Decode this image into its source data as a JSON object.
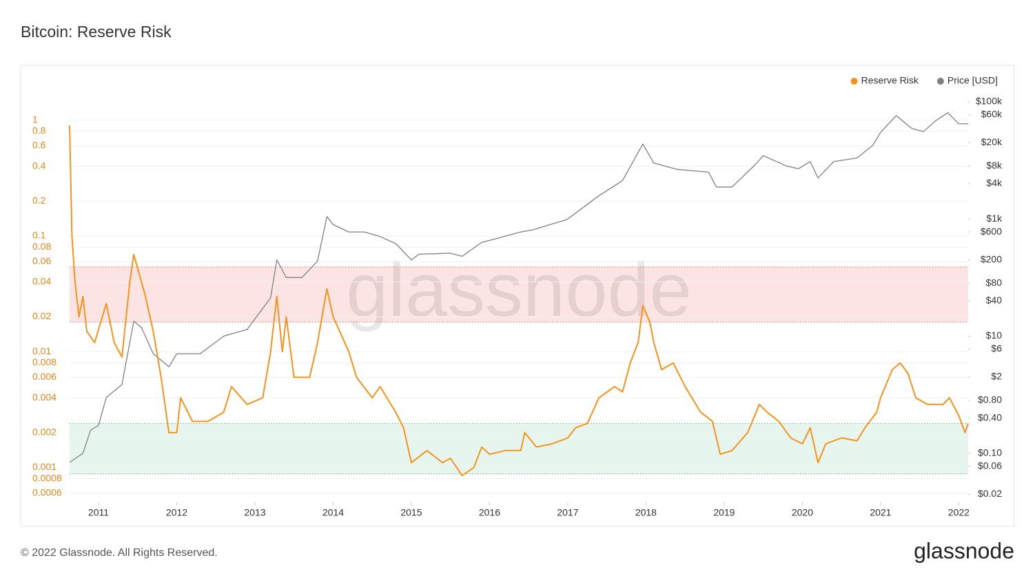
{
  "chart_data": {
    "type": "line",
    "title": "Bitcoin: Reserve Risk",
    "watermark": "glassnode",
    "footer": "© 2022 Glassnode. All Rights Reserved.",
    "brand": "glassnode",
    "log_scale": true,
    "grid": true,
    "legend": "top-right",
    "xlim": [
      2010.63,
      2022.12
    ],
    "xticks": [
      2011,
      2012,
      2013,
      2014,
      2015,
      2016,
      2017,
      2018,
      2019,
      2020,
      2021,
      2022
    ],
    "ylim": [
      0.0005,
      1.5
    ],
    "yticks": [
      1,
      0.8,
      0.6,
      0.4,
      0.2,
      0.1,
      0.08,
      0.06,
      0.04,
      0.02,
      0.01,
      0.008,
      0.006,
      0.004,
      0.002,
      0.001,
      0.0008,
      0.0006
    ],
    "y2lim": [
      0.0146,
      108000
    ],
    "y2ticks": [
      {
        "value": 100000,
        "label": "$100k"
      },
      {
        "value": 60000,
        "label": "$60k"
      },
      {
        "value": 20000,
        "label": "$20k"
      },
      {
        "value": 8000,
        "label": "$8k"
      },
      {
        "value": 4000,
        "label": "$4k"
      },
      {
        "value": 1000,
        "label": "$1k"
      },
      {
        "value": 600,
        "label": "$600"
      },
      {
        "value": 200,
        "label": "$200"
      },
      {
        "value": 80,
        "label": "$80"
      },
      {
        "value": 40,
        "label": "$40"
      },
      {
        "value": 10,
        "label": "$10"
      },
      {
        "value": 6,
        "label": "$6"
      },
      {
        "value": 2,
        "label": "$2"
      },
      {
        "value": 0.8,
        "label": "$0.80"
      },
      {
        "value": 0.4,
        "label": "$0.40"
      },
      {
        "value": 0.1,
        "label": "$0.10"
      },
      {
        "value": 0.06,
        "label": "$0.06"
      },
      {
        "value": 0.02,
        "label": "$0.02"
      }
    ],
    "zones": [
      {
        "range": [
          0.018,
          0.054
        ],
        "color": "#fde4e4"
      },
      {
        "range": [
          0.00088,
          0.0024
        ],
        "color": "#e6f6ee"
      }
    ],
    "series": [
      {
        "name": "Reserve Risk",
        "color": "#f7931a",
        "axis": "y",
        "x": [
          2010.63,
          2010.66,
          2010.7,
          2010.75,
          2010.8,
          2010.85,
          2010.95,
          2011.1,
          2011.2,
          2011.3,
          2011.4,
          2011.45,
          2011.6,
          2011.7,
          2011.8,
          2011.9,
          2012.0,
          2012.05,
          2012.2,
          2012.4,
          2012.6,
          2012.7,
          2012.9,
          2013.1,
          2013.2,
          2013.28,
          2013.35,
          2013.4,
          2013.5,
          2013.7,
          2013.8,
          2013.92,
          2014.0,
          2014.2,
          2014.3,
          2014.5,
          2014.6,
          2014.8,
          2014.9,
          2015.0,
          2015.2,
          2015.4,
          2015.5,
          2015.65,
          2015.8,
          2015.9,
          2016.0,
          2016.2,
          2016.4,
          2016.45,
          2016.6,
          2016.8,
          2017.0,
          2017.1,
          2017.25,
          2017.4,
          2017.6,
          2017.7,
          2017.8,
          2017.9,
          2017.96,
          2018.05,
          2018.1,
          2018.2,
          2018.35,
          2018.5,
          2018.7,
          2018.85,
          2018.95,
          2019.1,
          2019.3,
          2019.45,
          2019.55,
          2019.7,
          2019.85,
          2020.0,
          2020.1,
          2020.2,
          2020.3,
          2020.5,
          2020.7,
          2020.8,
          2020.95,
          2021.0,
          2021.15,
          2021.25,
          2021.35,
          2021.45,
          2021.6,
          2021.8,
          2021.88,
          2022.0,
          2022.08,
          2022.12
        ],
        "values": [
          0.9,
          0.1,
          0.04,
          0.02,
          0.03,
          0.015,
          0.012,
          0.026,
          0.012,
          0.009,
          0.04,
          0.069,
          0.03,
          0.015,
          0.006,
          0.002,
          0.002,
          0.004,
          0.0025,
          0.0025,
          0.003,
          0.005,
          0.0035,
          0.004,
          0.01,
          0.03,
          0.01,
          0.02,
          0.006,
          0.006,
          0.012,
          0.035,
          0.02,
          0.01,
          0.006,
          0.004,
          0.005,
          0.003,
          0.0022,
          0.0011,
          0.0014,
          0.0011,
          0.0012,
          0.00085,
          0.001,
          0.0015,
          0.0013,
          0.0014,
          0.0014,
          0.002,
          0.0015,
          0.0016,
          0.0018,
          0.0022,
          0.0024,
          0.004,
          0.005,
          0.0045,
          0.008,
          0.012,
          0.025,
          0.018,
          0.012,
          0.007,
          0.008,
          0.005,
          0.003,
          0.0025,
          0.0013,
          0.0014,
          0.002,
          0.0035,
          0.003,
          0.0025,
          0.0018,
          0.0016,
          0.0022,
          0.0011,
          0.0016,
          0.0018,
          0.0017,
          0.0022,
          0.003,
          0.004,
          0.007,
          0.008,
          0.0065,
          0.004,
          0.0035,
          0.0035,
          0.004,
          0.0028,
          0.002,
          0.0024
        ]
      },
      {
        "name": "Price [USD]",
        "color": "#7f7f7f",
        "axis": "y2",
        "x": [
          2010.63,
          2010.8,
          2010.9,
          2011.0,
          2011.1,
          2011.3,
          2011.45,
          2011.55,
          2011.7,
          2011.9,
          2012.0,
          2012.3,
          2012.6,
          2012.9,
          2013.2,
          2013.28,
          2013.4,
          2013.6,
          2013.8,
          2013.92,
          2014.0,
          2014.2,
          2014.4,
          2014.6,
          2014.8,
          2015.0,
          2015.1,
          2015.5,
          2015.65,
          2015.9,
          2016.0,
          2016.4,
          2016.55,
          2016.9,
          2017.0,
          2017.4,
          2017.7,
          2017.96,
          2018.1,
          2018.4,
          2018.8,
          2018.9,
          2019.1,
          2019.4,
          2019.5,
          2019.8,
          2019.95,
          2020.1,
          2020.2,
          2020.4,
          2020.7,
          2020.9,
          2021.0,
          2021.2,
          2021.4,
          2021.55,
          2021.7,
          2021.86,
          2022.0,
          2022.12
        ],
        "values": [
          0.07,
          0.1,
          0.25,
          0.3,
          0.9,
          1.5,
          18,
          14,
          5,
          3,
          5,
          5,
          10,
          13,
          45,
          200,
          100,
          100,
          190,
          1100,
          800,
          600,
          600,
          500,
          380,
          200,
          250,
          260,
          230,
          400,
          430,
          600,
          650,
          900,
          1000,
          2500,
          4500,
          19000,
          9000,
          7000,
          6300,
          3500,
          3500,
          8500,
          12000,
          8000,
          7200,
          9500,
          5000,
          9500,
          11000,
          18000,
          30000,
          58000,
          35000,
          31000,
          47000,
          65000,
          42000,
          42000
        ]
      }
    ]
  }
}
